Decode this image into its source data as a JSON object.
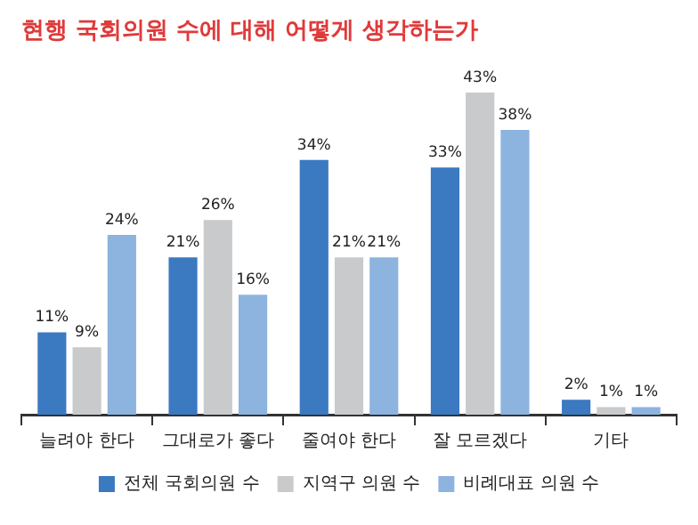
{
  "chart_data": {
    "type": "bar",
    "title": "현행 국회의원 수에 대해 어떻게 생각하는가",
    "categories": [
      "늘려야 한다",
      "그대로가 좋다",
      "줄여야 한다",
      "잘 모르겠다",
      "기타"
    ],
    "series": [
      {
        "name": "전체 국회의원 수",
        "color": "#3b79c1",
        "values": [
          11,
          21,
          34,
          33,
          2
        ],
        "value_labels": [
          "11%",
          "21%",
          "34%",
          "33%",
          "2%"
        ]
      },
      {
        "name": "지역구 의원 수",
        "color": "#c9cacc",
        "values": [
          9,
          26,
          21,
          43,
          1
        ],
        "value_labels": [
          "9%",
          "26%",
          "21%",
          "43%",
          "1%"
        ]
      },
      {
        "name": "비례대표 의원 수",
        "color": "#8db3df",
        "values": [
          24,
          16,
          21,
          38,
          1
        ],
        "value_labels": [
          "24%",
          "16%",
          "21%",
          "38%",
          "1%"
        ]
      }
    ],
    "legend": "bottom",
    "grid": false,
    "tick_labels": "x"
  }
}
